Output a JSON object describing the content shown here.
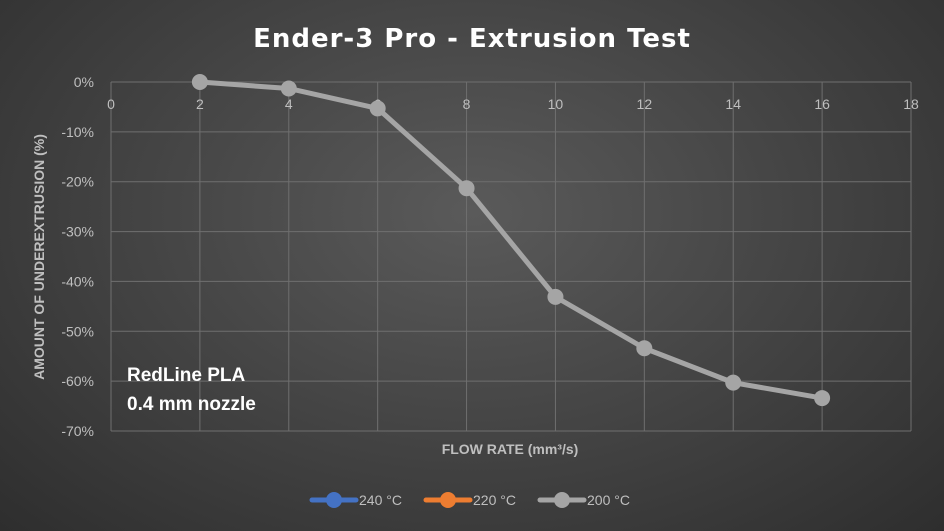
{
  "chart_data": {
    "type": "line",
    "title": "Ender-3 Pro - Extrusion Test",
    "xlabel": "FLOW RATE (mm³/s)",
    "ylabel": "AMOUNT OF UNDEREXTRUSION (%)",
    "xlim": [
      0,
      18
    ],
    "ylim": [
      -70,
      0
    ],
    "x_ticks": [
      0,
      2,
      4,
      6,
      8,
      10,
      12,
      14,
      16,
      18
    ],
    "y_ticks": [
      0,
      -10,
      -20,
      -30,
      -40,
      -50,
      -60,
      -70
    ],
    "y_tick_labels": [
      "0%",
      "-10%",
      "-20%",
      "-30%",
      "-40%",
      "-50%",
      "-60%",
      "-70%"
    ],
    "grid": true,
    "legend_position": "bottom",
    "annotations": [
      "RedLine PLA",
      "0.4 mm nozzle"
    ],
    "series": [
      {
        "name": "240 °C",
        "color": "#4472c4",
        "x": [],
        "y": []
      },
      {
        "name": "220 °C",
        "color": "#ed7d31",
        "x": [],
        "y": []
      },
      {
        "name": "200 °C",
        "color": "#a5a5a5",
        "x": [
          2,
          4,
          6,
          8,
          10,
          12,
          14,
          16
        ],
        "y": [
          0,
          -1.3,
          -5.3,
          -21.3,
          -43.1,
          -53.4,
          -60.3,
          -63.4
        ]
      }
    ]
  }
}
